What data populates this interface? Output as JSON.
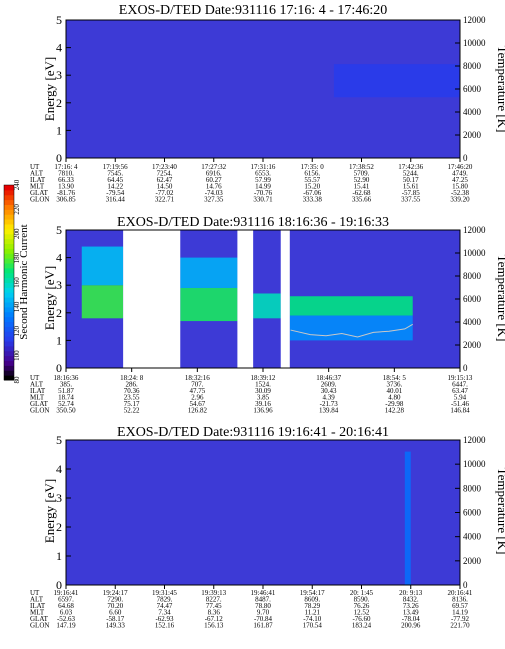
{
  "chart_data": {
    "type": "heatmap",
    "panels": [
      {
        "title": "EXOS-D/TED   Date:931116  17:16: 4 - 17:46:20",
        "ylabel": "Energy [eV]",
        "ylabel_right": "Temperature [K]",
        "ylim": [
          0,
          5
        ],
        "ylim_right": [
          0,
          12000
        ],
        "yticks": [
          "0",
          "1",
          "2",
          "3",
          "4",
          "5"
        ],
        "yticks_right": [
          "0",
          "2000",
          "4000",
          "6000",
          "8000",
          "10000",
          "12000"
        ],
        "row_labels": [
          "UT",
          "ALT",
          "ILAT",
          "MLT",
          "GLAT",
          "GLON"
        ],
        "columns": [
          [
            "17:16: 4",
            "7810.",
            "66.33",
            "13.90",
            "-81.76",
            "306.85"
          ],
          [
            "17:19:56",
            "7545.",
            "64.45",
            "14.22",
            "-79.54",
            "316.44"
          ],
          [
            "17:23:40",
            "7254.",
            "62.47",
            "14.50",
            "-77.02",
            "322.71"
          ],
          [
            "17:27:32",
            "6916.",
            "60.27",
            "14.76",
            "-74.03",
            "327.35"
          ],
          [
            "17:31:16",
            "6553.",
            "57.99",
            "14.99",
            "-70.76",
            "330.71"
          ],
          [
            "17:35: 0",
            "6156.",
            "55.57",
            "15.20",
            "-67.06",
            "333.38"
          ],
          [
            "17:38:52",
            "5709.",
            "52.90",
            "15.41",
            "-62.68",
            "335.66"
          ],
          [
            "17:42:36",
            "5244.",
            "50.17",
            "15.61",
            "-57.85",
            "337.55"
          ],
          [
            "17:46:20",
            "4749.",
            "47.25",
            "15.80",
            "-52.38",
            "339.20"
          ]
        ],
        "features": [
          {
            "kind": "band",
            "t": [
              0.68,
              1.0
            ],
            "e": [
              2.2,
              3.4
            ],
            "level": 0.2
          }
        ]
      },
      {
        "title": "EXOS-D/TED   Date:931116  18:16:36 - 19:16:33",
        "ylabel": "Energy [eV]",
        "ylabel_right": "Temperature [K]",
        "ylim": [
          0,
          5
        ],
        "ylim_right": [
          0,
          12000
        ],
        "yticks": [
          "0",
          "1",
          "2",
          "3",
          "4",
          "5"
        ],
        "yticks_right": [
          "0",
          "2000",
          "4000",
          "6000",
          "8000",
          "10000",
          "12000"
        ],
        "row_labels": [
          "UT",
          "ALT",
          "ILAT",
          "MLT",
          "GLAT",
          "GLON"
        ],
        "columns": [
          [
            "18:16:36",
            "385.",
            "51.87",
            "18.74",
            "52.74",
            "350.50"
          ],
          [
            "18:24: 8",
            "286.",
            "70.36",
            "23.55",
            "75.17",
            "52.22"
          ],
          [
            "18:32:16",
            "707.",
            "47.75",
            "2.96",
            "54.67",
            "126.82"
          ],
          [
            "18:39:12",
            "1524.",
            "30.09",
            "3.85",
            "39.16",
            "136.96"
          ],
          [
            "18:46:37",
            "2609.",
            "30.43",
            "4.39",
            "-21.73",
            "139.84"
          ],
          [
            "18:54: 5",
            "3736.",
            "40.01",
            "4.80",
            "-29.98",
            "142.28"
          ],
          [
            "19:15:13",
            "6447.",
            "63.47",
            "5.94",
            "-51.46",
            "146.84"
          ]
        ],
        "gaps": [
          [
            0.145,
            0.29
          ],
          [
            0.435,
            0.475
          ],
          [
            0.545,
            0.568
          ]
        ],
        "features": [
          {
            "kind": "band",
            "t": [
              0.04,
              0.145
            ],
            "e": [
              1.8,
              3.0
            ],
            "level": 0.6
          },
          {
            "kind": "band",
            "t": [
              0.04,
              0.145
            ],
            "e": [
              3.0,
              4.4
            ],
            "level": 0.42
          },
          {
            "kind": "band",
            "t": [
              0.29,
              0.435
            ],
            "e": [
              1.7,
              2.9
            ],
            "level": 0.58
          },
          {
            "kind": "band",
            "t": [
              0.29,
              0.435
            ],
            "e": [
              2.9,
              4.0
            ],
            "level": 0.4
          },
          {
            "kind": "band",
            "t": [
              0.475,
              0.545
            ],
            "e": [
              1.8,
              2.7
            ],
            "level": 0.5
          },
          {
            "kind": "band",
            "t": [
              0.568,
              0.88
            ],
            "e": [
              1.9,
              2.6
            ],
            "level": 0.55
          },
          {
            "kind": "band",
            "t": [
              0.568,
              0.88
            ],
            "e": [
              1.0,
              1.9
            ],
            "level": 0.35
          }
        ],
        "temperature_trace": {
          "t": [
            0.57,
            0.62,
            0.66,
            0.7,
            0.74,
            0.78,
            0.82,
            0.86,
            0.88
          ],
          "temp": [
            3300,
            2900,
            2800,
            3000,
            2700,
            3100,
            3200,
            3400,
            3800
          ]
        }
      },
      {
        "title": "EXOS-D/TED   Date:931116  19:16:41 - 20:16:41",
        "ylabel": "Energy [eV]",
        "ylabel_right": "Temperature [K]",
        "ylim": [
          0,
          5
        ],
        "ylim_right": [
          0,
          12000
        ],
        "yticks": [
          "0",
          "1",
          "2",
          "3",
          "4",
          "5"
        ],
        "yticks_right": [
          "0",
          "2000",
          "4000",
          "6000",
          "8000",
          "10000",
          "12000"
        ],
        "row_labels": [
          "UT",
          "ALT",
          "ILAT",
          "MLT",
          "GLAT",
          "GLON"
        ],
        "columns": [
          [
            "19:16:41",
            "6597.",
            "64.68",
            "6.03",
            "-52.63",
            "147.19"
          ],
          [
            "19:24:17",
            "7290.",
            "70.20",
            "6.60",
            "-58.17",
            "149.33"
          ],
          [
            "19:31:45",
            "7829.",
            "74.47",
            "7.34",
            "-62.93",
            "152.16"
          ],
          [
            "19:39:13",
            "8227.",
            "77.45",
            "8.36",
            "-67.12",
            "156.13"
          ],
          [
            "19:46:41",
            "8487.",
            "78.80",
            "9.70",
            "-70.84",
            "161.87"
          ],
          [
            "19:54:17",
            "8609.",
            "78.29",
            "11.21",
            "-74.10",
            "170.54"
          ],
          [
            "20: 1:45",
            "8590.",
            "76.26",
            "12.52",
            "-76.60",
            "183.24"
          ],
          [
            "20: 9:13",
            "8432.",
            "73.26",
            "13.49",
            "-78.04",
            "200.96"
          ],
          [
            "20:16:41",
            "8136.",
            "69.57",
            "14.19",
            "-77.92",
            "221.70"
          ]
        ],
        "features": [
          {
            "kind": "stripe",
            "t": [
              0.86,
              0.875
            ],
            "e": [
              0.0,
              4.6
            ],
            "level": 0.3
          }
        ]
      }
    ],
    "colorbar": {
      "label": "Second Harmonic Current",
      "ticks": [
        "80",
        "100",
        "120",
        "140",
        "160",
        "180",
        "200",
        "220",
        "240"
      ],
      "range": [
        80,
        240
      ]
    }
  }
}
